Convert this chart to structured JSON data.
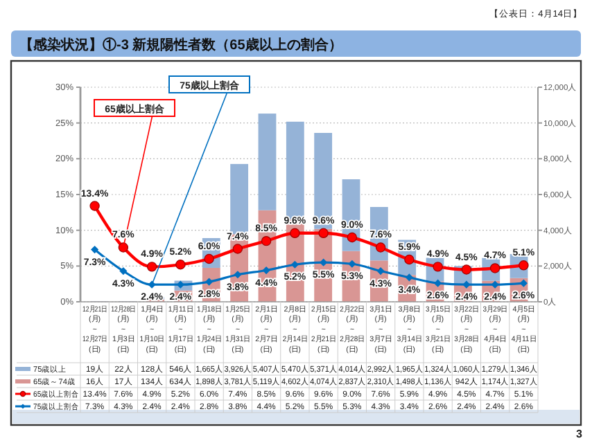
{
  "chart_data": {
    "type": "bar",
    "title": "【感染状況】①-3 新規陽性者数（65歳以上の割合）",
    "categories": [
      "12月21日\n(月)\n~\n12月27日\n(日)",
      "12月28日\n(月)\n~\n1月3日\n(日)",
      "1月4日\n(月)\n~\n1月10日\n(日)",
      "1月11日\n(月)\n~\n1月17日\n(日)",
      "1月18日\n(月)\n~\n1月24日\n(日)",
      "1月25日\n(月)\n~\n1月31日\n(日)",
      "2月1日\n(月)\n~\n2月7日\n(日)",
      "2月8日\n(月)\n~\n2月14日\n(日)",
      "2月15日\n(月)\n~\n2月21日\n(日)",
      "2月22日\n(月)\n~\n2月28日\n(日)",
      "3月1日\n(月)\n~\n3月7日\n(日)",
      "3月8日\n(月)\n~\n3月14日\n(日)",
      "3月15日\n(月)\n~\n3月21日\n(日)",
      "3月22日\n(月)\n~\n3月28日\n(日)",
      "3月29日\n(月)\n~\n4月4日\n(日)",
      "4月5日\n(月)\n~\n4月11日\n(日)"
    ],
    "stacked": true,
    "grid": "y",
    "legend": "bottom",
    "ylim": [
      0,
      30
    ],
    "yticks": [
      {
        "value": 0,
        "label": "0%"
      },
      {
        "value": 5,
        "label": "5%"
      },
      {
        "value": 10,
        "label": "10%"
      },
      {
        "value": 15,
        "label": "15%"
      },
      {
        "value": 20,
        "label": "20%"
      },
      {
        "value": 25,
        "label": "25%"
      },
      {
        "value": 30,
        "label": "30%"
      }
    ],
    "y2lim": [
      0,
      12000
    ],
    "y2ticks": [
      {
        "value": 0,
        "label": "0人"
      },
      {
        "value": 2000,
        "label": "2,000人"
      },
      {
        "value": 4000,
        "label": "4,000人"
      },
      {
        "value": 6000,
        "label": "6,000人"
      },
      {
        "value": 8000,
        "label": "8,000人"
      },
      {
        "value": 10000,
        "label": "10,000人"
      },
      {
        "value": 12000,
        "label": "12,000人"
      }
    ],
    "series": [
      {
        "name": "65歳～74歳",
        "axis": "y2",
        "color": "#d99694",
        "values": [
          16,
          17,
          134,
          634,
          1898,
          3781,
          5119,
          4602,
          4074,
          2837,
          2310,
          1498,
          1136,
          942,
          1174,
          1327
        ],
        "value_labels": [
          "16人",
          "17人",
          "134人",
          "634人",
          "1,898人",
          "3,781人",
          "5,119人",
          "4,602人",
          "4,074人",
          "2,837人",
          "2,310人",
          "1,498人",
          "1,136人",
          "942人",
          "1,174人",
          "1,327人"
        ]
      },
      {
        "name": "75歳以上",
        "axis": "y2",
        "color": "#95b3d7",
        "values": [
          19,
          22,
          128,
          546,
          1665,
          3926,
          5407,
          5470,
          5371,
          4014,
          2992,
          1965,
          1324,
          1060,
          1279,
          1346
        ],
        "value_labels": [
          "19人",
          "22人",
          "128人",
          "546人",
          "1,665人",
          "3,926人",
          "5,407人",
          "5,470人",
          "5,371人",
          "4,014人",
          "2,992人",
          "1,965人",
          "1,324人",
          "1,060人",
          "1,279人",
          "1,346人"
        ]
      },
      {
        "name": "65歳以上割合",
        "type": "line",
        "axis": "y",
        "marker": "circle",
        "color": "#ff0000",
        "values": [
          13.4,
          7.6,
          4.9,
          5.2,
          6.0,
          7.4,
          8.5,
          9.6,
          9.6,
          9.0,
          7.6,
          5.9,
          4.9,
          4.5,
          4.7,
          5.1
        ],
        "value_labels": [
          "13.4%",
          "7.6%",
          "4.9%",
          "5.2%",
          "6.0%",
          "7.4%",
          "8.5%",
          "9.6%",
          "9.6%",
          "9.0%",
          "7.6%",
          "5.9%",
          "4.9%",
          "4.5%",
          "4.7%",
          "5.1%"
        ]
      },
      {
        "name": "75歳以上割合",
        "type": "line",
        "axis": "y",
        "marker": "diamond",
        "color": "#0070c0",
        "values": [
          7.3,
          4.3,
          2.4,
          2.4,
          2.8,
          3.8,
          4.4,
          5.2,
          5.5,
          5.3,
          4.3,
          3.4,
          2.6,
          2.4,
          2.4,
          2.6
        ],
        "value_labels": [
          "7.3%",
          "4.3%",
          "2.4%",
          "2.4%",
          "2.8%",
          "3.8%",
          "4.4%",
          "5.2%",
          "5.5%",
          "5.3%",
          "4.3%",
          "3.4%",
          "2.6%",
          "2.4%",
          "2.4%",
          "2.6%"
        ]
      }
    ],
    "annotations": [
      "【公表日：4月14日】",
      "3",
      {
        "text": "65歳以上割合",
        "x": "12月28日\n(月)\n~\n1月3日\n(日)",
        "y": 7.6
      },
      {
        "text": "75歳以上割合",
        "x": "1月4日\n(月)\n~\n1月10日\n(日)",
        "y": 2.4
      }
    ]
  }
}
